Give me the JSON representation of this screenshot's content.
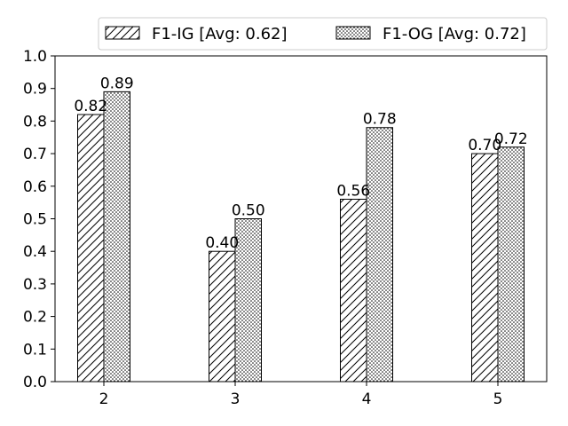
{
  "chart_data": {
    "type": "bar",
    "categories": [
      "2",
      "3",
      "4",
      "5"
    ],
    "series": [
      {
        "name": "F1-IG [Avg: 0.62]",
        "values": [
          0.82,
          0.4,
          0.56,
          0.7
        ],
        "pattern": "hatch-diagonal"
      },
      {
        "name": "F1-OG [Avg: 0.72]",
        "values": [
          0.89,
          0.5,
          0.78,
          0.72
        ],
        "pattern": "dots"
      }
    ],
    "data_labels": [
      [
        "0.82",
        "0.40",
        "0.56",
        "0.70"
      ],
      [
        "0.89",
        "0.50",
        "0.78",
        "0.72"
      ]
    ],
    "y_ticks": [
      "0.0",
      "0.1",
      "0.2",
      "0.3",
      "0.4",
      "0.5",
      "0.6",
      "0.7",
      "0.8",
      "0.9",
      "1.0"
    ],
    "ylim": [
      0,
      1.0
    ],
    "title": "",
    "xlabel": "",
    "ylabel": "",
    "grid": false,
    "legend_position": "top",
    "colors": {
      "bar_fill": "#ffffff",
      "bar_edge": "#000000",
      "axis": "#000000"
    }
  }
}
